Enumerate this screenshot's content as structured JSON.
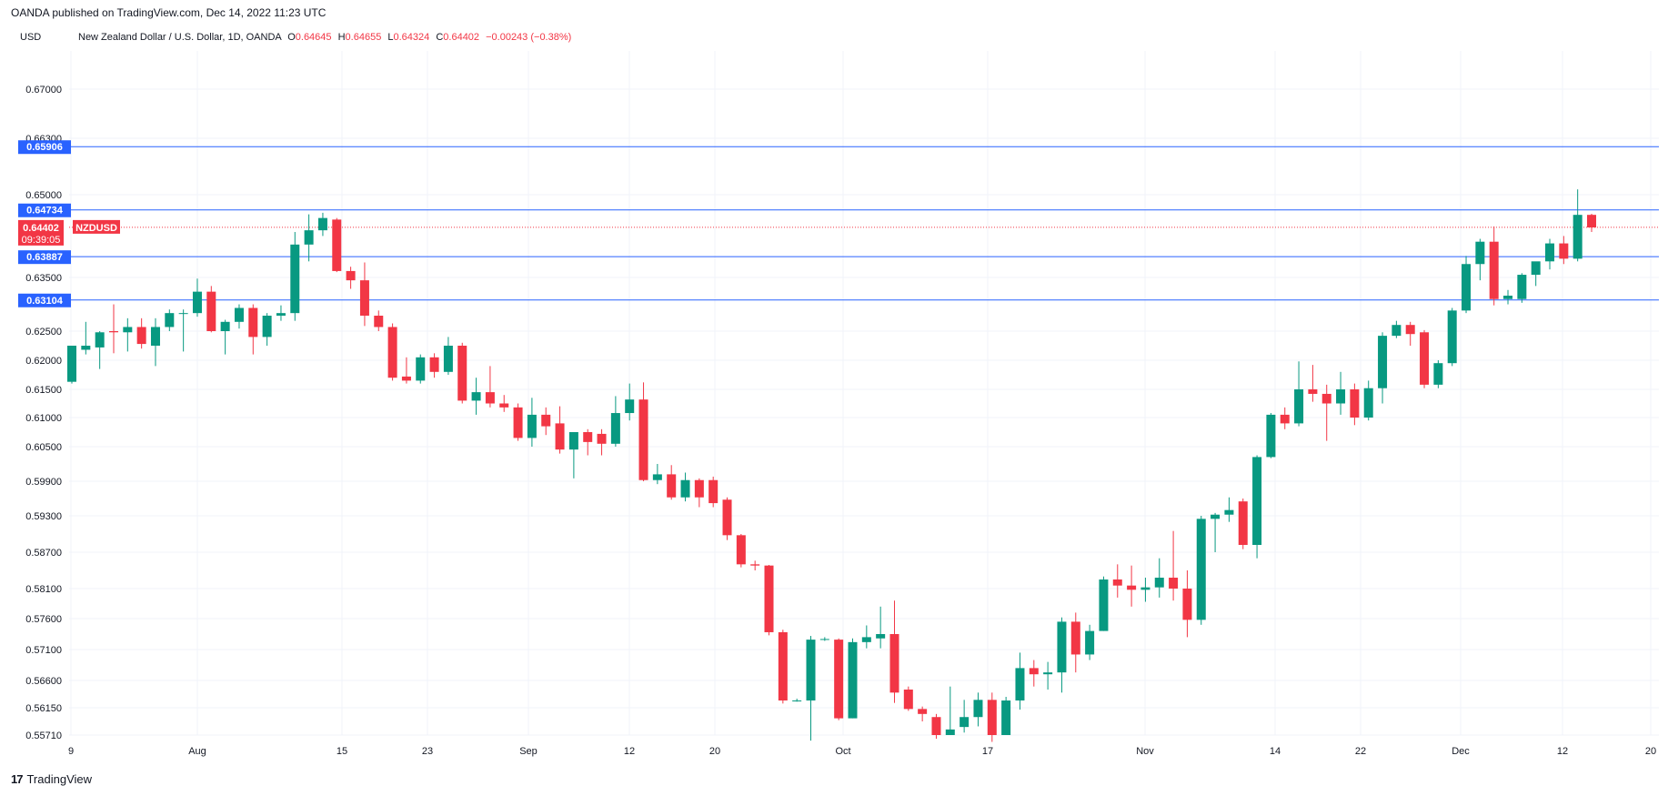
{
  "header": {
    "publisher": "OANDA published on TradingView.com, Dec 14, 2022 11:23 UTC",
    "currency": "USD"
  },
  "legend": {
    "symbol": "New Zealand Dollar / U.S. Dollar, 1D, OANDA",
    "o_label": "O",
    "o_value": "0.64645",
    "h_label": "H",
    "h_value": "0.64655",
    "l_label": "L",
    "l_value": "0.64324",
    "c_label": "C",
    "c_value": "0.64402",
    "change": "−0.00243 (−0.38%)"
  },
  "footer": {
    "brand": "TradingView",
    "logo_icon": "tradingview-logo-icon"
  },
  "colors": {
    "up": "#089981",
    "down": "#f23645",
    "line": "#2962ff",
    "grid": "#f0f3fa"
  },
  "chart_data": {
    "type": "candlestick",
    "y_scale": "non-linear (tick labels unevenly spaced)",
    "y_ticks": [
      "0.67000",
      "0.66300",
      "0.65000",
      "0.63500",
      "0.62500",
      "0.62000",
      "0.61500",
      "0.61000",
      "0.60500",
      "0.59900",
      "0.59300",
      "0.58700",
      "0.58100",
      "0.57600",
      "0.57100",
      "0.56600",
      "0.56150",
      "0.55710"
    ],
    "x_ticks": [
      "9",
      "Aug",
      "15",
      "23",
      "Sep",
      "12",
      "20",
      "Oct",
      "17",
      "Nov",
      "14",
      "22",
      "Dec",
      "12",
      "20"
    ],
    "horizontal_levels": [
      "0.65906",
      "0.64734",
      "0.63887",
      "0.63104"
    ],
    "last_price": {
      "value": "0.64402",
      "symbol": "NZDUSD",
      "countdown": "09:39:05"
    },
    "candles": [
      {
        "o": 0.6163,
        "h": 0.6225,
        "l": 0.616,
        "c": 0.6225
      },
      {
        "o": 0.6218,
        "h": 0.6268,
        "l": 0.621,
        "c": 0.6225
      },
      {
        "o": 0.6222,
        "h": 0.625,
        "l": 0.6185,
        "c": 0.6248
      },
      {
        "o": 0.625,
        "h": 0.6302,
        "l": 0.6212,
        "c": 0.6248
      },
      {
        "o": 0.6248,
        "h": 0.6275,
        "l": 0.6215,
        "c": 0.6258
      },
      {
        "o": 0.6258,
        "h": 0.6275,
        "l": 0.622,
        "c": 0.6228
      },
      {
        "o": 0.6225,
        "h": 0.6275,
        "l": 0.619,
        "c": 0.6258
      },
      {
        "o": 0.6258,
        "h": 0.6292,
        "l": 0.625,
        "c": 0.6285
      },
      {
        "o": 0.6285,
        "h": 0.6292,
        "l": 0.6215,
        "c": 0.6285
      },
      {
        "o": 0.6285,
        "h": 0.6348,
        "l": 0.6278,
        "c": 0.6325
      },
      {
        "o": 0.6325,
        "h": 0.6335,
        "l": 0.6248,
        "c": 0.625
      },
      {
        "o": 0.625,
        "h": 0.6272,
        "l": 0.621,
        "c": 0.6268
      },
      {
        "o": 0.6268,
        "h": 0.6302,
        "l": 0.6255,
        "c": 0.6295
      },
      {
        "o": 0.6295,
        "h": 0.6302,
        "l": 0.621,
        "c": 0.624
      },
      {
        "o": 0.624,
        "h": 0.6285,
        "l": 0.6225,
        "c": 0.628
      },
      {
        "o": 0.628,
        "h": 0.63,
        "l": 0.627,
        "c": 0.6285
      },
      {
        "o": 0.6285,
        "h": 0.6432,
        "l": 0.627,
        "c": 0.641
      },
      {
        "o": 0.641,
        "h": 0.6465,
        "l": 0.638,
        "c": 0.6435
      },
      {
        "o": 0.6435,
        "h": 0.6468,
        "l": 0.6425,
        "c": 0.6458
      },
      {
        "o": 0.6455,
        "h": 0.6458,
        "l": 0.636,
        "c": 0.6362
      },
      {
        "o": 0.6362,
        "h": 0.637,
        "l": 0.633,
        "c": 0.6345
      },
      {
        "o": 0.6345,
        "h": 0.6378,
        "l": 0.626,
        "c": 0.628
      },
      {
        "o": 0.628,
        "h": 0.629,
        "l": 0.625,
        "c": 0.6258
      },
      {
        "o": 0.6258,
        "h": 0.6265,
        "l": 0.6165,
        "c": 0.617
      },
      {
        "o": 0.6172,
        "h": 0.6205,
        "l": 0.616,
        "c": 0.6165
      },
      {
        "o": 0.6165,
        "h": 0.621,
        "l": 0.616,
        "c": 0.6205
      },
      {
        "o": 0.6205,
        "h": 0.6212,
        "l": 0.617,
        "c": 0.618
      },
      {
        "o": 0.618,
        "h": 0.624,
        "l": 0.6175,
        "c": 0.6225
      },
      {
        "o": 0.6225,
        "h": 0.623,
        "l": 0.6125,
        "c": 0.613
      },
      {
        "o": 0.613,
        "h": 0.617,
        "l": 0.6105,
        "c": 0.6145
      },
      {
        "o": 0.6145,
        "h": 0.619,
        "l": 0.6118,
        "c": 0.6125
      },
      {
        "o": 0.6125,
        "h": 0.614,
        "l": 0.611,
        "c": 0.6118
      },
      {
        "o": 0.6118,
        "h": 0.6125,
        "l": 0.606,
        "c": 0.6065
      },
      {
        "o": 0.6065,
        "h": 0.6135,
        "l": 0.605,
        "c": 0.6105
      },
      {
        "o": 0.6105,
        "h": 0.6118,
        "l": 0.607,
        "c": 0.6085
      },
      {
        "o": 0.609,
        "h": 0.612,
        "l": 0.6038,
        "c": 0.6045
      },
      {
        "o": 0.6045,
        "h": 0.6075,
        "l": 0.5995,
        "c": 0.6075
      },
      {
        "o": 0.6075,
        "h": 0.608,
        "l": 0.6035,
        "c": 0.6058
      },
      {
        "o": 0.6072,
        "h": 0.608,
        "l": 0.6035,
        "c": 0.6055
      },
      {
        "o": 0.6055,
        "h": 0.6138,
        "l": 0.605,
        "c": 0.6108
      },
      {
        "o": 0.6108,
        "h": 0.616,
        "l": 0.6095,
        "c": 0.6132
      },
      {
        "o": 0.6132,
        "h": 0.6162,
        "l": 0.599,
        "c": 0.5992
      },
      {
        "o": 0.5992,
        "h": 0.602,
        "l": 0.5985,
        "c": 0.6002
      },
      {
        "o": 0.6002,
        "h": 0.6018,
        "l": 0.5958,
        "c": 0.5962
      },
      {
        "o": 0.5962,
        "h": 0.6005,
        "l": 0.5955,
        "c": 0.5992
      },
      {
        "o": 0.5992,
        "h": 0.5995,
        "l": 0.5945,
        "c": 0.5962
      },
      {
        "o": 0.5992,
        "h": 0.5998,
        "l": 0.5945,
        "c": 0.5952
      },
      {
        "o": 0.5958,
        "h": 0.5962,
        "l": 0.589,
        "c": 0.5898
      },
      {
        "o": 0.5898,
        "h": 0.59,
        "l": 0.5845,
        "c": 0.585
      },
      {
        "o": 0.585,
        "h": 0.5856,
        "l": 0.584,
        "c": 0.5848
      },
      {
        "o": 0.5848,
        "h": 0.5849,
        "l": 0.5733,
        "c": 0.5738
      },
      {
        "o": 0.5738,
        "h": 0.5742,
        "l": 0.5622,
        "c": 0.5627
      },
      {
        "o": 0.5627,
        "h": 0.563,
        "l": 0.5625,
        "c": 0.5627
      },
      {
        "o": 0.5627,
        "h": 0.5732,
        "l": 0.5562,
        "c": 0.5726
      },
      {
        "o": 0.5726,
        "h": 0.573,
        "l": 0.5724,
        "c": 0.5727
      },
      {
        "o": 0.5726,
        "h": 0.5728,
        "l": 0.5595,
        "c": 0.5598
      },
      {
        "o": 0.5598,
        "h": 0.5728,
        "l": 0.5598,
        "c": 0.5722
      },
      {
        "o": 0.5722,
        "h": 0.5749,
        "l": 0.5712,
        "c": 0.573
      },
      {
        "o": 0.5728,
        "h": 0.578,
        "l": 0.5712,
        "c": 0.5735
      },
      {
        "o": 0.5735,
        "h": 0.579,
        "l": 0.5623,
        "c": 0.564
      },
      {
        "o": 0.5645,
        "h": 0.565,
        "l": 0.561,
        "c": 0.5613
      },
      {
        "o": 0.5613,
        "h": 0.5617,
        "l": 0.5593,
        "c": 0.5605
      },
      {
        "o": 0.56,
        "h": 0.5605,
        "l": 0.5565,
        "c": 0.5571
      },
      {
        "o": 0.5571,
        "h": 0.565,
        "l": 0.5571,
        "c": 0.558
      },
      {
        "o": 0.5584,
        "h": 0.5628,
        "l": 0.5575,
        "c": 0.56
      },
      {
        "o": 0.56,
        "h": 0.564,
        "l": 0.5585,
        "c": 0.5628
      },
      {
        "o": 0.5628,
        "h": 0.564,
        "l": 0.556,
        "c": 0.5571
      },
      {
        "o": 0.5571,
        "h": 0.5633,
        "l": 0.5571,
        "c": 0.5627
      },
      {
        "o": 0.5627,
        "h": 0.5705,
        "l": 0.5612,
        "c": 0.568
      },
      {
        "o": 0.568,
        "h": 0.5693,
        "l": 0.565,
        "c": 0.567
      },
      {
        "o": 0.567,
        "h": 0.569,
        "l": 0.5645,
        "c": 0.5673
      },
      {
        "o": 0.5673,
        "h": 0.5762,
        "l": 0.564,
        "c": 0.5755
      },
      {
        "o": 0.5755,
        "h": 0.577,
        "l": 0.5673,
        "c": 0.5702
      },
      {
        "o": 0.5702,
        "h": 0.575,
        "l": 0.5693,
        "c": 0.574
      },
      {
        "o": 0.574,
        "h": 0.583,
        "l": 0.574,
        "c": 0.5825
      },
      {
        "o": 0.5825,
        "h": 0.585,
        "l": 0.5795,
        "c": 0.5815
      },
      {
        "o": 0.5815,
        "h": 0.5848,
        "l": 0.578,
        "c": 0.5808
      },
      {
        "o": 0.5808,
        "h": 0.5828,
        "l": 0.5788,
        "c": 0.5812
      },
      {
        "o": 0.5812,
        "h": 0.586,
        "l": 0.5795,
        "c": 0.5828
      },
      {
        "o": 0.5828,
        "h": 0.5905,
        "l": 0.579,
        "c": 0.581
      },
      {
        "o": 0.581,
        "h": 0.584,
        "l": 0.573,
        "c": 0.5758
      },
      {
        "o": 0.5758,
        "h": 0.593,
        "l": 0.575,
        "c": 0.5925
      },
      {
        "o": 0.5925,
        "h": 0.5935,
        "l": 0.587,
        "c": 0.5932
      },
      {
        "o": 0.5932,
        "h": 0.5962,
        "l": 0.592,
        "c": 0.594
      },
      {
        "o": 0.5955,
        "h": 0.596,
        "l": 0.5875,
        "c": 0.5882
      },
      {
        "o": 0.5882,
        "h": 0.6035,
        "l": 0.586,
        "c": 0.6032
      },
      {
        "o": 0.6032,
        "h": 0.6108,
        "l": 0.603,
        "c": 0.6105
      },
      {
        "o": 0.6105,
        "h": 0.6118,
        "l": 0.608,
        "c": 0.609
      },
      {
        "o": 0.609,
        "h": 0.6198,
        "l": 0.6085,
        "c": 0.615
      },
      {
        "o": 0.615,
        "h": 0.6192,
        "l": 0.6128,
        "c": 0.6142
      },
      {
        "o": 0.6142,
        "h": 0.6158,
        "l": 0.606,
        "c": 0.6125
      },
      {
        "o": 0.6125,
        "h": 0.618,
        "l": 0.6105,
        "c": 0.615
      },
      {
        "o": 0.615,
        "h": 0.616,
        "l": 0.6087,
        "c": 0.61
      },
      {
        "o": 0.61,
        "h": 0.6165,
        "l": 0.6095,
        "c": 0.6152
      },
      {
        "o": 0.6152,
        "h": 0.6248,
        "l": 0.6125,
        "c": 0.6242
      },
      {
        "o": 0.6242,
        "h": 0.627,
        "l": 0.6238,
        "c": 0.6262
      },
      {
        "o": 0.6262,
        "h": 0.6268,
        "l": 0.6225,
        "c": 0.6245
      },
      {
        "o": 0.6248,
        "h": 0.6252,
        "l": 0.6152,
        "c": 0.6158
      },
      {
        "o": 0.6158,
        "h": 0.62,
        "l": 0.6152,
        "c": 0.6195
      },
      {
        "o": 0.6195,
        "h": 0.6295,
        "l": 0.619,
        "c": 0.629
      },
      {
        "o": 0.629,
        "h": 0.639,
        "l": 0.6285,
        "c": 0.6375
      },
      {
        "o": 0.6375,
        "h": 0.642,
        "l": 0.6345,
        "c": 0.6415
      },
      {
        "o": 0.6415,
        "h": 0.6442,
        "l": 0.63,
        "c": 0.6312
      },
      {
        "o": 0.6312,
        "h": 0.6328,
        "l": 0.6302,
        "c": 0.6318
      },
      {
        "o": 0.6312,
        "h": 0.6358,
        "l": 0.6305,
        "c": 0.6355
      },
      {
        "o": 0.6355,
        "h": 0.6375,
        "l": 0.6335,
        "c": 0.638
      },
      {
        "o": 0.638,
        "h": 0.642,
        "l": 0.6365,
        "c": 0.6412
      },
      {
        "o": 0.6412,
        "h": 0.6425,
        "l": 0.6375,
        "c": 0.6385
      },
      {
        "o": 0.6385,
        "h": 0.651,
        "l": 0.638,
        "c": 0.6464
      },
      {
        "o": 0.6464,
        "h": 0.6466,
        "l": 0.6432,
        "c": 0.644
      }
    ]
  }
}
